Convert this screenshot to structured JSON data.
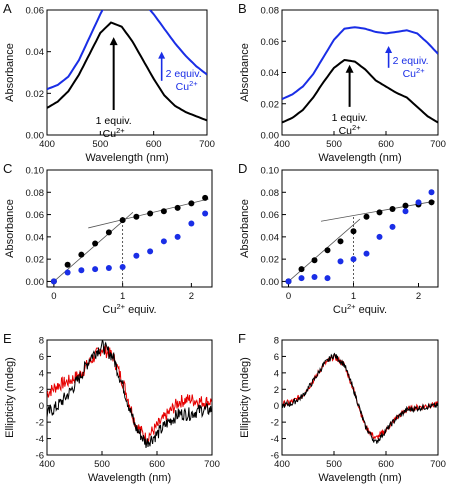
{
  "chart_data": [
    {
      "id": "A",
      "type": "line",
      "panel_label": "A",
      "xlabel": "Wavelength (nm)",
      "ylabel": "Absorbance",
      "xlim": [
        400,
        700
      ],
      "ylim": [
        0,
        0.06
      ],
      "xticks": [
        "400",
        "500",
        "600",
        "700"
      ],
      "yticks": [
        "0.00",
        "0.02",
        "0.04",
        "0.06"
      ],
      "series": [
        {
          "color": "#1a2ee6",
          "x": [
            400,
            420,
            440,
            460,
            480,
            500,
            520,
            540,
            560,
            580,
            600,
            620,
            640,
            660,
            680,
            700
          ],
          "y": [
            0.022,
            0.024,
            0.028,
            0.036,
            0.047,
            0.058,
            0.068,
            0.071,
            0.069,
            0.064,
            0.058,
            0.051,
            0.044,
            0.038,
            0.033,
            0.029
          ]
        },
        {
          "color": "#000000",
          "x": [
            400,
            420,
            440,
            460,
            480,
            500,
            520,
            540,
            560,
            580,
            600,
            620,
            640,
            660,
            680,
            700
          ],
          "y": [
            0.013,
            0.016,
            0.021,
            0.029,
            0.039,
            0.049,
            0.054,
            0.052,
            0.045,
            0.036,
            0.027,
            0.019,
            0.014,
            0.011,
            0.009,
            0.007
          ]
        }
      ],
      "annotations": [
        {
          "lines": [
            "1 equiv.",
            "Cu2+"
          ],
          "color": "#000000"
        },
        {
          "lines": [
            "2 equiv.",
            "Cu2+"
          ],
          "color": "#1a2ee6"
        }
      ]
    },
    {
      "id": "B",
      "type": "line",
      "panel_label": "B",
      "xlabel": "Wavelength (nm)",
      "ylabel": "Absorbance",
      "xlim": [
        400,
        700
      ],
      "ylim": [
        0,
        0.08
      ],
      "xticks": [
        "400",
        "500",
        "600",
        "700"
      ],
      "yticks": [
        "0.00",
        "0.02",
        "0.04",
        "0.06",
        "0.08"
      ],
      "series": [
        {
          "color": "#1a2ee6",
          "x": [
            400,
            420,
            440,
            460,
            480,
            500,
            520,
            540,
            560,
            580,
            600,
            620,
            640,
            660,
            680,
            700
          ],
          "y": [
            0.023,
            0.026,
            0.031,
            0.039,
            0.05,
            0.061,
            0.068,
            0.069,
            0.068,
            0.066,
            0.065,
            0.066,
            0.067,
            0.065,
            0.059,
            0.052
          ]
        },
        {
          "color": "#000000",
          "x": [
            400,
            420,
            440,
            460,
            480,
            500,
            520,
            540,
            560,
            580,
            600,
            620,
            640,
            660,
            680,
            700
          ],
          "y": [
            0.008,
            0.011,
            0.016,
            0.024,
            0.034,
            0.043,
            0.048,
            0.047,
            0.042,
            0.035,
            0.031,
            0.027,
            0.024,
            0.018,
            0.012,
            0.008
          ]
        }
      ],
      "annotations": [
        {
          "lines": [
            "1 equiv.",
            "Cu2+"
          ],
          "color": "#000000"
        },
        {
          "lines": [
            "2 equiv.",
            "Cu2+"
          ],
          "color": "#1a2ee6"
        }
      ]
    },
    {
      "id": "C",
      "type": "scatter",
      "panel_label": "C",
      "xlabel": "Cu2+ equiv.",
      "ylabel": "Absorbance",
      "xlim": [
        -0.1,
        2.3
      ],
      "ylim": [
        -0.005,
        0.1
      ],
      "xticks": [
        "0",
        "1",
        "2"
      ],
      "yticks": [
        "0.00",
        "0.02",
        "0.04",
        "0.06",
        "0.08",
        "0.10"
      ],
      "series": [
        {
          "color": "#000000",
          "x": [
            0,
            0.2,
            0.4,
            0.6,
            0.8,
            1.0,
            1.2,
            1.4,
            1.6,
            1.8,
            2.0,
            2.2
          ],
          "y": [
            0.0,
            0.015,
            0.024,
            0.034,
            0.044,
            0.055,
            0.058,
            0.061,
            0.063,
            0.066,
            0.07,
            0.075
          ]
        },
        {
          "color": "#1a2ee6",
          "x": [
            0,
            0.2,
            0.4,
            0.6,
            0.8,
            1.0,
            1.2,
            1.4,
            1.6,
            1.8,
            2.0,
            2.2
          ],
          "y": [
            0.0,
            0.008,
            0.01,
            0.011,
            0.012,
            0.013,
            0.023,
            0.027,
            0.036,
            0.04,
            0.052,
            0.061
          ]
        }
      ],
      "fit_lines": [
        {
          "x": [
            0,
            1.15
          ],
          "y": [
            0.0,
            0.062
          ]
        },
        {
          "x": [
            0.5,
            2.25
          ],
          "y": [
            0.048,
            0.074
          ]
        }
      ],
      "marker_x": 1.0
    },
    {
      "id": "D",
      "type": "scatter",
      "panel_label": "D",
      "xlabel": "Cu2+ equiv.",
      "ylabel": "Absorbance",
      "xlim": [
        -0.1,
        2.3
      ],
      "ylim": [
        -0.005,
        0.1
      ],
      "xticks": [
        "0",
        "1",
        "2"
      ],
      "yticks": [
        "0.00",
        "0.02",
        "0.04",
        "0.06",
        "0.08",
        "0.10"
      ],
      "series": [
        {
          "color": "#000000",
          "x": [
            0,
            0.2,
            0.4,
            0.6,
            0.8,
            1.0,
            1.2,
            1.4,
            1.6,
            1.8,
            2.0,
            2.2
          ],
          "y": [
            0.0,
            0.011,
            0.019,
            0.028,
            0.036,
            0.045,
            0.058,
            0.062,
            0.065,
            0.068,
            0.069,
            0.071
          ]
        },
        {
          "color": "#1a2ee6",
          "x": [
            0,
            0.2,
            0.4,
            0.6,
            0.8,
            1.0,
            1.2,
            1.4,
            1.6,
            1.8,
            2.0,
            2.2
          ],
          "y": [
            0.0,
            0.003,
            0.004,
            0.003,
            0.018,
            0.02,
            0.025,
            0.04,
            0.049,
            0.063,
            0.071,
            0.08
          ]
        }
      ],
      "fit_lines": [
        {
          "x": [
            0,
            1.1
          ],
          "y": [
            0.0,
            0.056
          ]
        },
        {
          "x": [
            0.5,
            2.25
          ],
          "y": [
            0.054,
            0.072
          ]
        }
      ],
      "marker_x": 1.0
    },
    {
      "id": "E",
      "type": "line",
      "panel_label": "E",
      "xlabel": "Wavelength (nm)",
      "ylabel": "Ellipticity (mdeg)",
      "xlim": [
        400,
        700
      ],
      "ylim": [
        -6,
        8
      ],
      "xticks": [
        "400",
        "500",
        "600",
        "700"
      ],
      "yticks": [
        "-6",
        "-4",
        "-2",
        "0",
        "2",
        "4",
        "6",
        "8"
      ],
      "series": [
        {
          "color": "#e60000",
          "x": [
            400,
            420,
            440,
            460,
            480,
            500,
            520,
            540,
            560,
            580,
            600,
            620,
            640,
            660,
            680,
            700
          ],
          "y": [
            1.5,
            2.5,
            3.0,
            3.8,
            5.5,
            7.0,
            6.0,
            2.5,
            -2.0,
            -4.0,
            -2.5,
            -1.0,
            0.5,
            0.8,
            0.5,
            0.5
          ]
        },
        {
          "color": "#000000",
          "x": [
            400,
            420,
            440,
            460,
            480,
            500,
            520,
            540,
            560,
            580,
            600,
            620,
            640,
            660,
            680,
            700
          ],
          "y": [
            -1.0,
            0.0,
            1.5,
            3.5,
            6.0,
            7.3,
            6.0,
            2.0,
            -2.5,
            -4.5,
            -3.5,
            -2.0,
            -1.0,
            -1.0,
            -0.5,
            -0.5
          ]
        }
      ],
      "noise": 0.8
    },
    {
      "id": "F",
      "type": "line",
      "panel_label": "F",
      "xlabel": "Wavelength (nm)",
      "ylabel": "Ellipticity (mdeg)",
      "xlim": [
        400,
        700
      ],
      "ylim": [
        -6,
        8
      ],
      "xticks": [
        "400",
        "500",
        "600",
        "700"
      ],
      "yticks": [
        "-6",
        "-4",
        "-2",
        "0",
        "2",
        "4",
        "6",
        "8"
      ],
      "series": [
        {
          "color": "#e60000",
          "x": [
            400,
            420,
            440,
            460,
            480,
            500,
            520,
            540,
            560,
            580,
            600,
            620,
            640,
            660,
            680,
            700
          ],
          "y": [
            0.2,
            0.5,
            1.3,
            3.0,
            5.0,
            6.0,
            5.0,
            1.5,
            -2.5,
            -4.0,
            -3.0,
            -1.5,
            -0.5,
            -0.2,
            0.0,
            0.2
          ]
        },
        {
          "color": "#000000",
          "x": [
            400,
            420,
            440,
            460,
            480,
            500,
            520,
            540,
            560,
            580,
            600,
            620,
            640,
            660,
            680,
            700
          ],
          "y": [
            0.0,
            0.3,
            1.2,
            3.0,
            5.0,
            6.2,
            5.0,
            1.5,
            -2.5,
            -4.5,
            -3.0,
            -1.5,
            -0.5,
            -0.3,
            -0.1,
            0.0
          ]
        }
      ],
      "noise": 0.35
    }
  ]
}
